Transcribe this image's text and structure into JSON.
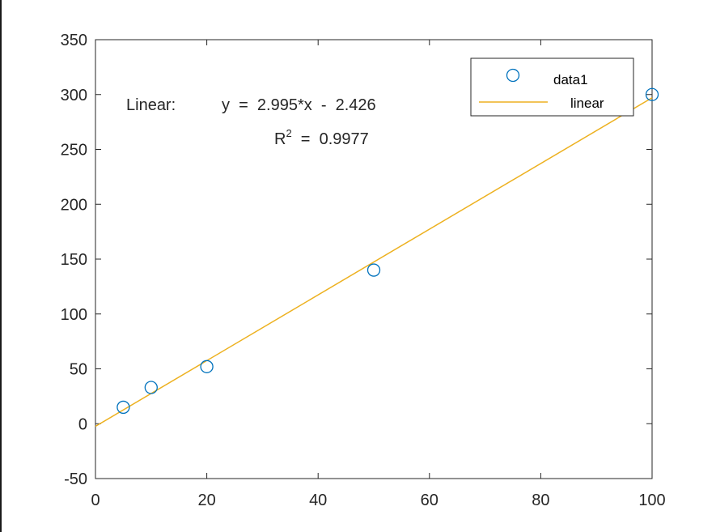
{
  "chart_data": {
    "type": "scatter",
    "xlim": [
      0,
      100
    ],
    "ylim": [
      -50,
      350
    ],
    "x_ticks": [
      0,
      20,
      40,
      60,
      80,
      100
    ],
    "y_ticks": [
      -50,
      0,
      50,
      100,
      150,
      200,
      250,
      300,
      350
    ],
    "grid": false,
    "legend_position": "top-right",
    "series": [
      {
        "name": "data1",
        "marker": "circle",
        "color": "#0072BD",
        "x": [
          5,
          10,
          20,
          50,
          100
        ],
        "y": [
          15,
          33,
          52,
          140,
          300
        ]
      },
      {
        "name": "linear",
        "kind": "line",
        "color": "#EDB120",
        "x": [
          0,
          100
        ],
        "y": [
          -2.426,
          297.074
        ]
      }
    ],
    "annotation": {
      "equation_prefix": "Linear:",
      "equation": "y  =  2.995*x  -  2.426",
      "r2_base": "R",
      "r2_sup": "2",
      "r2_rest": "  =  0.9977"
    }
  }
}
